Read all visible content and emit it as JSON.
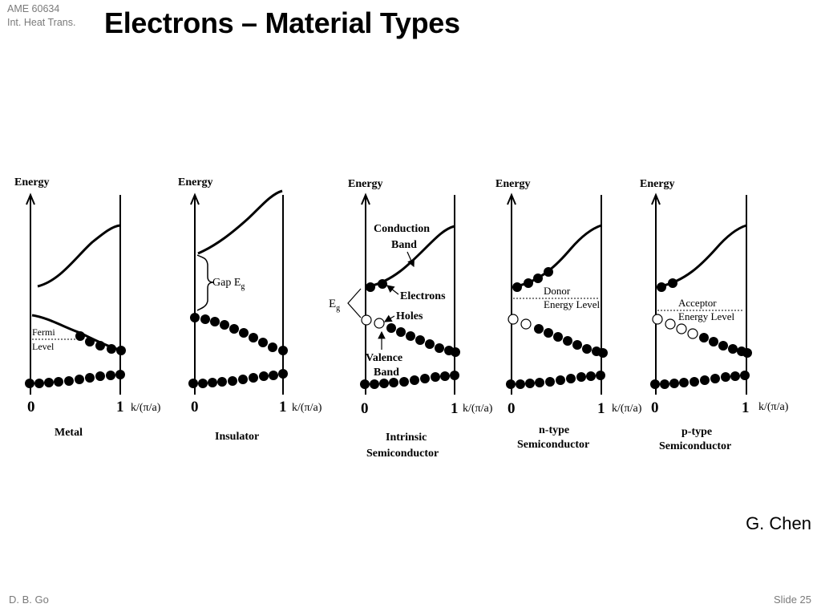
{
  "header": {
    "course_code": "AME 60634",
    "course_name": "Int. Heat Trans.",
    "title": "Electrons – Material Types"
  },
  "credit": "G. Chen",
  "footer": {
    "author": "D. B. Go",
    "slide": "Slide 25"
  },
  "axes": {
    "y_label": "Energy",
    "x_label": "k/(π/a)",
    "x_start": "0",
    "x_end": "1"
  },
  "panels": [
    {
      "name": "Metal",
      "caption": [
        "Metal"
      ],
      "annotations": [
        "Fermi",
        "Level"
      ]
    },
    {
      "name": "Insulator",
      "caption": [
        "Insulator"
      ],
      "annotations": [
        "Gap E",
        "g"
      ]
    },
    {
      "name": "Intrinsic",
      "caption": [
        "Intrinsic",
        "Semiconductor"
      ],
      "annotations": [
        "Conduction",
        "Band",
        "Electrons",
        "E",
        "g",
        "Holes",
        "Valence",
        "Band"
      ]
    },
    {
      "name": "n-type",
      "caption": [
        "n-type",
        "Semiconductor"
      ],
      "annotations": [
        "Donor",
        "Energy Level"
      ]
    },
    {
      "name": "p-type",
      "caption": [
        "p-type",
        "Semiconductor"
      ],
      "annotations": [
        "Acceptor",
        "Energy Level"
      ]
    }
  ],
  "colors": {
    "ink": "#000000",
    "hole_fill": "#ffffff",
    "footer_gray": "#7a7a7a"
  }
}
